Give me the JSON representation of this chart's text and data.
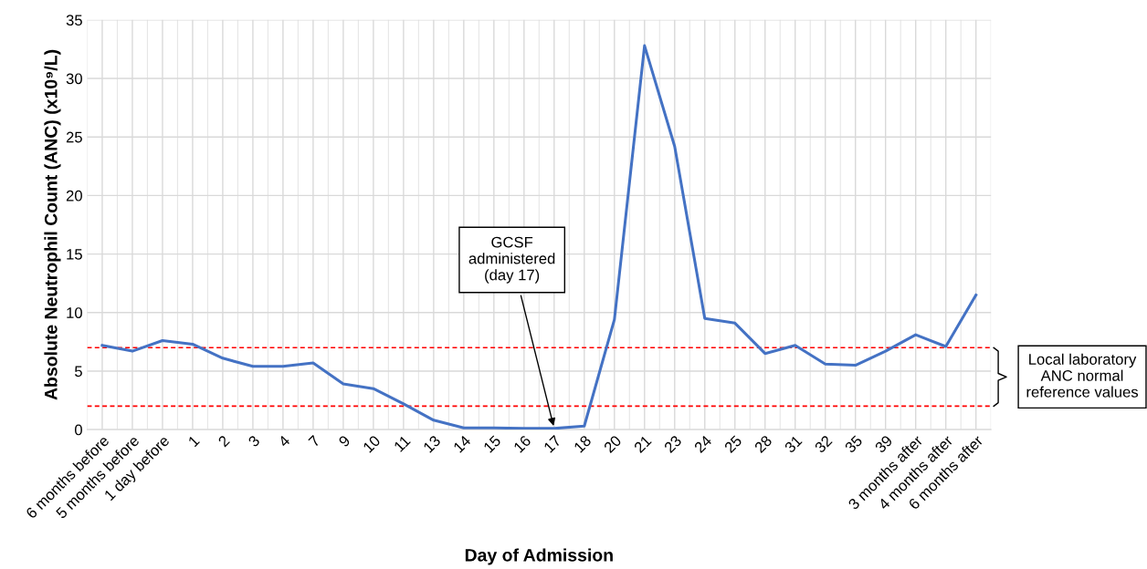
{
  "chart_data": {
    "type": "line",
    "xlabel": "Day of Admission",
    "ylabel": "Absolute Neutrophil Count (ANC) (x10⁹/L)",
    "categories": [
      "6 months before",
      "5 months before",
      "1 day before",
      "1",
      "2",
      "3",
      "4",
      "7",
      "9",
      "10",
      "11",
      "13",
      "14",
      "15",
      "16",
      "17",
      "18",
      "20",
      "21",
      "23",
      "24",
      "25",
      "28",
      "31",
      "32",
      "35",
      "39",
      "3 months after",
      "4 months after",
      "6 months after"
    ],
    "series": [
      {
        "color": "#4472c4",
        "values": [
          7.2,
          6.7,
          7.6,
          7.3,
          6.1,
          5.4,
          5.4,
          5.7,
          3.9,
          3.5,
          2.2,
          0.8,
          0.15,
          0.15,
          0.1,
          0.1,
          0.3,
          9.4,
          32.8,
          24.2,
          9.5,
          9.1,
          6.5,
          7.2,
          5.6,
          5.5,
          6.7,
          8.1,
          7.1,
          11.5
        ]
      }
    ],
    "ylim": [
      0,
      35
    ],
    "yticks": [
      0,
      5,
      10,
      15,
      20,
      25,
      30,
      35
    ],
    "grid": true,
    "marker": "none",
    "line_style": "solid",
    "ref_lines": [
      {
        "axis": "y",
        "value": 7,
        "color": "#ff0000",
        "line_style": "dashed"
      },
      {
        "axis": "y",
        "value": 2,
        "color": "#ff0000",
        "line_style": "dashed"
      }
    ],
    "annotations": [
      {
        "text": "GCSF\nadministered\n(day 17)",
        "x": "17",
        "y": 0.1
      },
      "Local laboratory\nANC normal\nreference values"
    ]
  }
}
